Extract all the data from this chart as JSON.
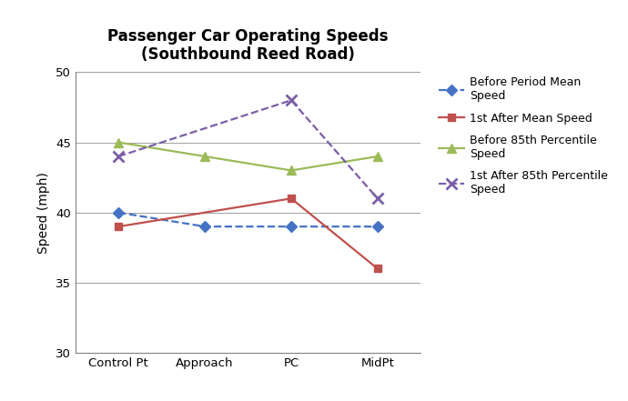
{
  "title": "Passenger Car Operating Speeds\n(Southbound Reed Road)",
  "xlabel_ticks": [
    "Control Pt",
    "Approach",
    "PC",
    "MidPt"
  ],
  "x_positions": [
    0,
    1,
    2,
    3
  ],
  "ylabel": "Speed (mph)",
  "ylim": [
    30,
    50
  ],
  "yticks": [
    30,
    35,
    40,
    45,
    50
  ],
  "series": [
    {
      "label": "Before Period Mean\nSpeed",
      "x": [
        0,
        1,
        2,
        3
      ],
      "y": [
        40.0,
        39.0,
        39.0,
        39.0
      ],
      "color": "#4472C4",
      "linestyle": "--",
      "marker": "D",
      "markersize": 6,
      "linewidth": 1.6
    },
    {
      "label": "1st After Mean Speed",
      "x": [
        0,
        2,
        3
      ],
      "y": [
        39.0,
        41.0,
        36.0
      ],
      "color": "#C0504D",
      "linestyle": "-",
      "marker": "s",
      "markersize": 6,
      "linewidth": 1.6
    },
    {
      "label": "Before 85th Percentile\nSpeed",
      "x": [
        0,
        1,
        2,
        3
      ],
      "y": [
        45.0,
        44.0,
        43.0,
        44.0
      ],
      "color": "#9BBB59",
      "linestyle": "-",
      "marker": "^",
      "markersize": 7,
      "linewidth": 1.6
    },
    {
      "label": "1st After 85th Percentile\nSpeed",
      "x": [
        0,
        2,
        3
      ],
      "y": [
        44.0,
        48.0,
        41.0
      ],
      "color": "#7B5EA7",
      "linestyle": "--",
      "marker": "x",
      "markersize": 8,
      "linewidth": 1.6,
      "markeredgewidth": 2
    }
  ],
  "background_color": "#FFFFFF",
  "grid_color": "#A0A0A0",
  "title_fontsize": 12,
  "axis_label_fontsize": 10,
  "tick_fontsize": 9.5,
  "legend_fontsize": 9
}
